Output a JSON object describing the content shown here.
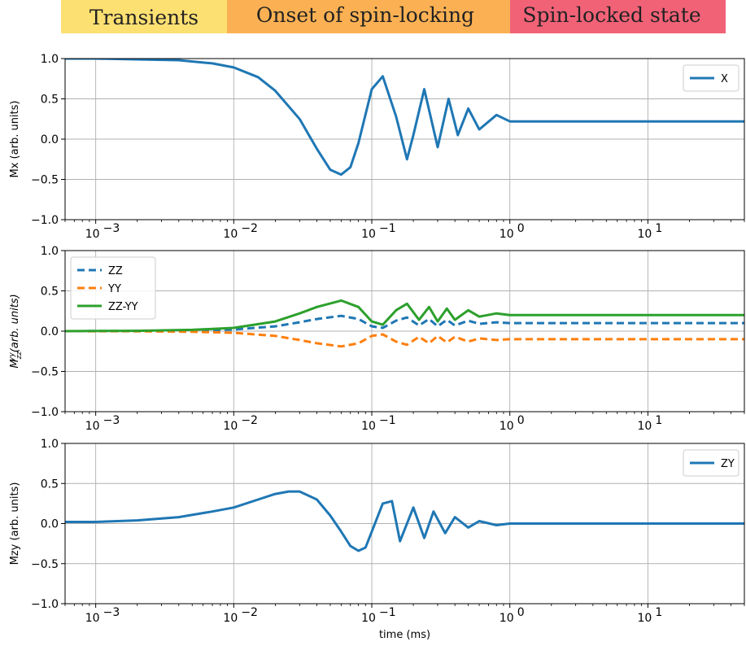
{
  "banner": {
    "segments": [
      {
        "label": "Transients",
        "color": "#fde072"
      },
      {
        "label": "Onset of spin-locking",
        "color": "#fbb153"
      },
      {
        "label": "Spin-locked state",
        "color": "#f16277"
      }
    ]
  },
  "colors": {
    "blue": "#1f77b4",
    "orange": "#ff7f0e",
    "green": "#2ca02c",
    "grid": "#b0b0b0"
  },
  "chart_data": [
    {
      "type": "line",
      "xscale": "log",
      "xlim": [
        0.0006,
        50
      ],
      "ylim": [
        -1.0,
        1.0
      ],
      "yticks": [
        "1.0",
        "0.5",
        "0.0",
        "−0.5",
        "−1.0"
      ],
      "xticks": [
        "10",
        "10",
        "10",
        "10",
        "10"
      ],
      "xtick_exponents": [
        "−3",
        "−2",
        "−1",
        "0",
        "1"
      ],
      "xlabel": "",
      "ylabel": "Mx (arb. units)",
      "grid": true,
      "legend": "top-right",
      "series": [
        {
          "name": "X",
          "color": "#1f77b4",
          "style": "solid",
          "x": [
            0.0006,
            0.001,
            0.002,
            0.004,
            0.007,
            0.01,
            0.015,
            0.02,
            0.03,
            0.04,
            0.05,
            0.06,
            0.07,
            0.08,
            0.1,
            0.12,
            0.15,
            0.18,
            0.2,
            0.24,
            0.3,
            0.36,
            0.42,
            0.5,
            0.6,
            0.8,
            1.0,
            2,
            10,
            50
          ],
          "y": [
            1.0,
            1.0,
            0.99,
            0.98,
            0.94,
            0.89,
            0.77,
            0.6,
            0.25,
            -0.12,
            -0.38,
            -0.44,
            -0.35,
            -0.05,
            0.62,
            0.78,
            0.28,
            -0.25,
            0.05,
            0.62,
            -0.1,
            0.5,
            0.05,
            0.38,
            0.12,
            0.3,
            0.22,
            0.22,
            0.22,
            0.22
          ]
        }
      ]
    },
    {
      "type": "line",
      "xscale": "log",
      "xlim": [
        0.0006,
        50
      ],
      "ylim": [
        -1.0,
        1.0
      ],
      "yticks": [
        "1.0",
        "0.5",
        "0.0",
        "−0.5",
        "−1.0"
      ],
      "xticks": [
        "10",
        "10",
        "10",
        "10",
        "10"
      ],
      "xtick_exponents": [
        "−3",
        "−2",
        "−1",
        "0",
        "1"
      ],
      "xlabel": "",
      "ylabel_main": "M",
      "ylabel_sub": "zz",
      "ylabel_sup": "yy",
      "ylabel_rest": "(arb. units)",
      "grid": true,
      "legend": "top-left",
      "series": [
        {
          "name": "ZZ",
          "color": "#1f77b4",
          "style": "dashed",
          "x": [
            0.0006,
            0.002,
            0.005,
            0.01,
            0.02,
            0.03,
            0.04,
            0.06,
            0.08,
            0.1,
            0.12,
            0.15,
            0.18,
            0.22,
            0.26,
            0.3,
            0.35,
            0.4,
            0.5,
            0.6,
            0.8,
            1.0,
            2,
            10,
            50
          ],
          "y": [
            0.0,
            0.002,
            0.008,
            0.02,
            0.06,
            0.11,
            0.15,
            0.19,
            0.15,
            0.06,
            0.04,
            0.13,
            0.17,
            0.07,
            0.15,
            0.06,
            0.14,
            0.07,
            0.13,
            0.09,
            0.11,
            0.1,
            0.1,
            0.1,
            0.1
          ]
        },
        {
          "name": "YY",
          "color": "#ff7f0e",
          "style": "dashed",
          "x": [
            0.0006,
            0.002,
            0.005,
            0.01,
            0.02,
            0.03,
            0.04,
            0.06,
            0.08,
            0.1,
            0.12,
            0.15,
            0.18,
            0.22,
            0.26,
            0.3,
            0.35,
            0.4,
            0.5,
            0.6,
            0.8,
            1.0,
            2,
            10,
            50
          ],
          "y": [
            0.0,
            -0.002,
            -0.008,
            -0.02,
            -0.06,
            -0.11,
            -0.15,
            -0.19,
            -0.15,
            -0.06,
            -0.04,
            -0.13,
            -0.17,
            -0.07,
            -0.15,
            -0.06,
            -0.14,
            -0.07,
            -0.13,
            -0.09,
            -0.11,
            -0.1,
            -0.1,
            -0.1,
            -0.1
          ]
        },
        {
          "name": "ZZ-YY",
          "color": "#2ca02c",
          "style": "solid",
          "x": [
            0.0006,
            0.002,
            0.005,
            0.01,
            0.02,
            0.03,
            0.04,
            0.06,
            0.08,
            0.1,
            0.12,
            0.15,
            0.18,
            0.22,
            0.26,
            0.3,
            0.35,
            0.4,
            0.5,
            0.6,
            0.8,
            1.0,
            2,
            10,
            50
          ],
          "y": [
            0.0,
            0.004,
            0.016,
            0.04,
            0.12,
            0.22,
            0.3,
            0.38,
            0.3,
            0.12,
            0.08,
            0.26,
            0.34,
            0.14,
            0.3,
            0.12,
            0.28,
            0.14,
            0.26,
            0.18,
            0.22,
            0.2,
            0.2,
            0.2,
            0.2
          ]
        }
      ]
    },
    {
      "type": "line",
      "xscale": "log",
      "xlim": [
        0.0006,
        50
      ],
      "ylim": [
        -1.0,
        1.0
      ],
      "yticks": [
        "1.0",
        "0.5",
        "0.0",
        "−0.5",
        "−1.0"
      ],
      "xticks": [
        "10",
        "10",
        "10",
        "10",
        "10"
      ],
      "xtick_exponents": [
        "−3",
        "−2",
        "−1",
        "0",
        "1"
      ],
      "xlabel": "time (ms)",
      "ylabel": "Mzy (arb. units)",
      "grid": true,
      "legend": "top-right",
      "series": [
        {
          "name": "ZY",
          "color": "#1f77b4",
          "style": "solid",
          "x": [
            0.0006,
            0.001,
            0.002,
            0.004,
            0.007,
            0.01,
            0.015,
            0.02,
            0.025,
            0.03,
            0.04,
            0.05,
            0.06,
            0.07,
            0.08,
            0.09,
            0.1,
            0.12,
            0.14,
            0.16,
            0.2,
            0.24,
            0.28,
            0.34,
            0.4,
            0.5,
            0.6,
            0.8,
            1.0,
            2,
            10,
            50
          ],
          "y": [
            0.02,
            0.02,
            0.04,
            0.08,
            0.15,
            0.2,
            0.3,
            0.37,
            0.4,
            0.4,
            0.3,
            0.1,
            -0.1,
            -0.28,
            -0.34,
            -0.3,
            -0.1,
            0.25,
            0.28,
            -0.22,
            0.2,
            -0.18,
            0.15,
            -0.12,
            0.08,
            -0.05,
            0.03,
            -0.02,
            0.0,
            0.0,
            0.0,
            0.0
          ]
        }
      ]
    }
  ]
}
